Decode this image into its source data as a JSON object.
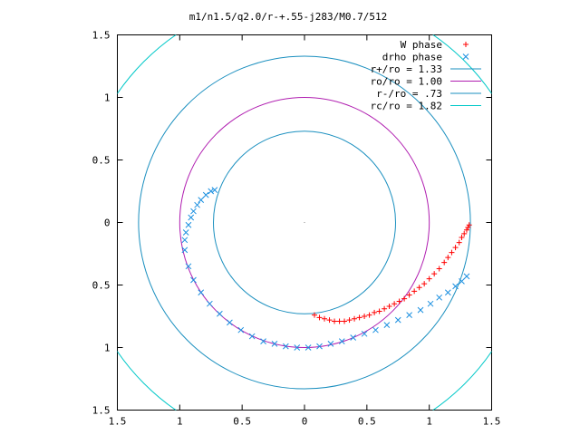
{
  "chart_data": {
    "type": "scatter",
    "title": "m1/n1.5/q2.0/r-+.55-j283/M0.7/512",
    "xlabel": "",
    "ylabel": "",
    "xlim": [
      -1.5,
      1.5
    ],
    "ylim": [
      -1.5,
      1.5
    ],
    "x_ticks": [
      -1.5,
      -1,
      -0.5,
      0,
      0.5,
      1,
      1.5
    ],
    "x_tick_labels": [
      "1.5",
      "1",
      "0.5",
      "0",
      "0.5",
      "1",
      "1.5"
    ],
    "y_ticks": [
      1.5,
      1,
      0.5,
      0,
      -0.5,
      -1,
      -1.5
    ],
    "y_tick_labels": [
      "1.5",
      "1",
      "0.5",
      "0",
      "0.5",
      "1",
      "1.5"
    ],
    "grid": false,
    "legend_position": "top-right",
    "circles": [
      {
        "name": "r+/ro = 1.33",
        "radius": 1.33,
        "color": "#1a8fbf"
      },
      {
        "name": "ro/ro = 1.00",
        "radius": 1.0,
        "color": "#b01eb0"
      },
      {
        "name": "r-/ro = .73",
        "radius": 0.73,
        "color": "#1a8fbf"
      },
      {
        "name": "rc/ro = 1.82",
        "radius": 1.82,
        "color": "#00c8c8"
      }
    ],
    "series": [
      {
        "name": "W phase",
        "marker": "+",
        "color": "#ff0000",
        "x": [
          0.08,
          0.12,
          0.16,
          0.2,
          0.24,
          0.28,
          0.32,
          0.36,
          0.4,
          0.44,
          0.48,
          0.52,
          0.56,
          0.6,
          0.64,
          0.68,
          0.72,
          0.76,
          0.8,
          0.84,
          0.88,
          0.92,
          0.96,
          1.0,
          1.04,
          1.08,
          1.12,
          1.15,
          1.18,
          1.21,
          1.24,
          1.26,
          1.28,
          1.3,
          1.31,
          1.32
        ],
        "y": [
          -0.74,
          -0.76,
          -0.77,
          -0.78,
          -0.79,
          -0.79,
          -0.79,
          -0.78,
          -0.77,
          -0.76,
          -0.75,
          -0.74,
          -0.72,
          -0.71,
          -0.69,
          -0.67,
          -0.65,
          -0.63,
          -0.61,
          -0.58,
          -0.55,
          -0.52,
          -0.49,
          -0.45,
          -0.41,
          -0.37,
          -0.32,
          -0.28,
          -0.24,
          -0.2,
          -0.16,
          -0.12,
          -0.09,
          -0.06,
          -0.04,
          -0.02
        ]
      },
      {
        "name": "drho phase",
        "marker": "x",
        "color": "#1a8fe0",
        "x": [
          -0.72,
          -0.75,
          -0.79,
          -0.83,
          -0.86,
          -0.89,
          -0.91,
          -0.93,
          -0.95,
          -0.96,
          -0.96,
          -0.93,
          -0.89,
          -0.83,
          -0.76,
          -0.68,
          -0.6,
          -0.51,
          -0.42,
          -0.33,
          -0.24,
          -0.15,
          -0.06,
          0.03,
          0.12,
          0.21,
          0.3,
          0.39,
          0.48,
          0.57,
          0.66,
          0.75,
          0.84,
          0.93,
          1.01,
          1.08,
          1.15,
          1.21,
          1.26,
          1.3
        ],
        "y": [
          0.26,
          0.25,
          0.22,
          0.18,
          0.14,
          0.09,
          0.04,
          -0.02,
          -0.08,
          -0.14,
          -0.22,
          -0.35,
          -0.46,
          -0.56,
          -0.65,
          -0.73,
          -0.8,
          -0.86,
          -0.91,
          -0.95,
          -0.97,
          -0.99,
          -1.0,
          -1.0,
          -0.99,
          -0.97,
          -0.95,
          -0.92,
          -0.89,
          -0.86,
          -0.82,
          -0.78,
          -0.74,
          -0.7,
          -0.65,
          -0.6,
          -0.56,
          -0.51,
          -0.47,
          -0.43
        ]
      }
    ]
  }
}
